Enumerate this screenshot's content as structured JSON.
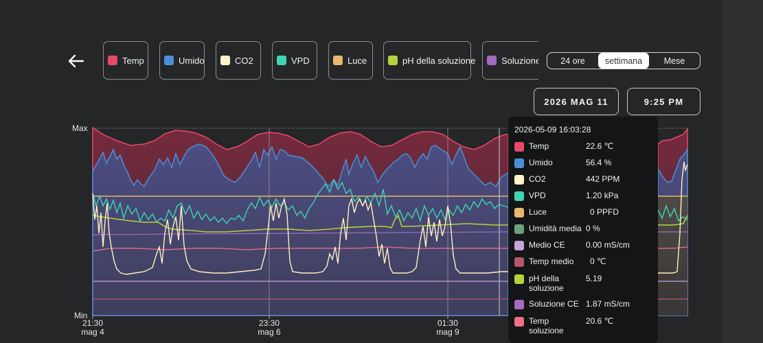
{
  "header": {
    "back_icon": "arrow-left-icon"
  },
  "chips": [
    {
      "label": "Temp",
      "color": "#e64a6b"
    },
    {
      "label": "Umido",
      "color": "#4a90d9"
    },
    {
      "label": "CO2",
      "color": "#fff5c8"
    },
    {
      "label": "VPD",
      "color": "#3dd6b0"
    },
    {
      "label": "Luce",
      "color": "#e8b86c"
    },
    {
      "label": "pH della soluzione",
      "color": "#b5d33a"
    },
    {
      "label": "Soluzione C",
      "color": "#a66ac0"
    }
  ],
  "range": {
    "options": [
      "24 ore",
      "settimana",
      "Mese"
    ],
    "selected": "settimana"
  },
  "date_button": "2026 MAG 11",
  "time_button": "9:25 PM",
  "axes": {
    "y_max": "Max",
    "y_min": "Min",
    "x_ticks": [
      {
        "time": "21:30",
        "date": "mag 4"
      },
      {
        "time": "23:30",
        "date": "mag 6"
      },
      {
        "time": "01:30",
        "date": "mag 9"
      }
    ]
  },
  "tooltip": {
    "timestamp": "2026-05-09 16:03:28",
    "rows": [
      {
        "name": "Temp",
        "value": "22.6 ℃",
        "color": "#e64a6b"
      },
      {
        "name": "Umido",
        "value": "56.4 %",
        "color": "#4a90d9"
      },
      {
        "name": "CO2",
        "value": "442 PPM",
        "color": "#fff5c8"
      },
      {
        "name": "VPD",
        "value": "1.20 kPa",
        "color": "#3dd6b0"
      },
      {
        "name": "Luce",
        "value": "0 PPFD",
        "color": "#e8b86c"
      },
      {
        "name": "Umidità media",
        "value": "0 %",
        "color": "#6d9f7a"
      },
      {
        "name": "Medio CE",
        "value": "0.00 mS/cm",
        "color": "#c7a3d6"
      },
      {
        "name": "Temp medio",
        "value": "0 ℃",
        "color": "#b5586b"
      },
      {
        "name": "pH della soluzione",
        "value": "5.19",
        "color": "#b5d33a"
      },
      {
        "name": "Soluzione CE",
        "value": "1.87 mS/cm",
        "color": "#a66ac0"
      },
      {
        "name": "Temp soluzione",
        "value": "20.6 ℃",
        "color": "#f07089"
      }
    ]
  },
  "chart_data": {
    "type": "area",
    "x": [
      "21:30 mag 4",
      "23:30 mag 6",
      "01:30 mag 9"
    ],
    "series": [
      {
        "name": "Temp",
        "color": "#e64a6b"
      },
      {
        "name": "Umido",
        "color": "#4a90d9"
      },
      {
        "name": "CO2",
        "color": "#fff5c8"
      },
      {
        "name": "VPD",
        "color": "#3dd6b0"
      },
      {
        "name": "Luce",
        "color": "#e8b86c"
      },
      {
        "name": "pH della soluzione",
        "color": "#b5d33a"
      },
      {
        "name": "Soluzione CE",
        "color": "#a66ac0"
      },
      {
        "name": "Temp soluzione",
        "color": "#f07089"
      }
    ],
    "ylim": [
      "Min",
      "Max"
    ],
    "grid": true
  }
}
